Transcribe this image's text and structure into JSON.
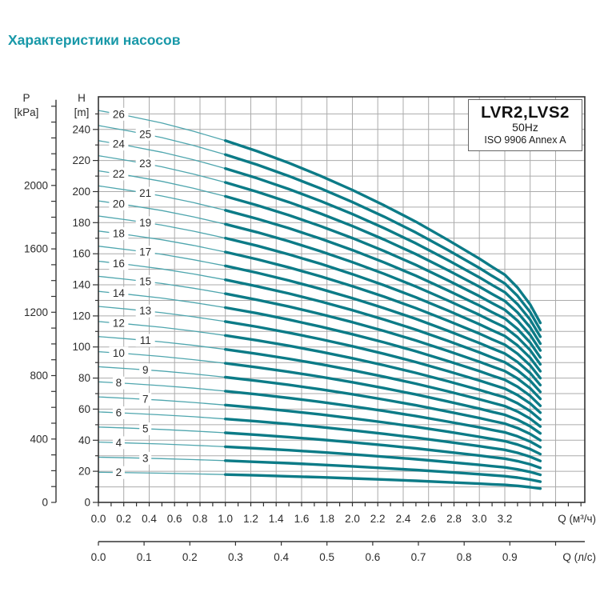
{
  "page": {
    "title": "Характеристики насосов"
  },
  "legend": {
    "model": "LVR2,LVS2",
    "frequency": "50Hz",
    "standard": "ISO 9906 Annex A"
  },
  "colors": {
    "title": "#1898a8",
    "curve_thin": "#4fa6ae",
    "curve_thick": "#0c7b87",
    "grid": "#ababab",
    "axis": "#333333",
    "text": "#2b2b2b"
  },
  "chart_data": {
    "type": "line",
    "title": "LVR2,LVS2 50Hz ISO 9906 Annex A",
    "description": "Head (H) vs flow (Q) curves for multistage pump, one curve per stage count",
    "x_axis_m3h": {
      "unit_label": "Q (м³/ч)",
      "labels": [
        "0.0",
        "0.2",
        "0.4",
        "0.6",
        "0.8",
        "1.0",
        "1.2",
        "1.4",
        "1.6",
        "1.8",
        "2.0",
        "2.2",
        "2.4",
        "2.6",
        "2.8",
        "3.0",
        "3.2"
      ],
      "label_step": 0.2,
      "minor_tick_step": 0.1,
      "minor_tick_max": 3.8,
      "axis_max": 3.83,
      "grid_step": 0.2,
      "grid_max": 3.6
    },
    "x_axis_ls": {
      "unit_label": "Q (л/с)",
      "labels": [
        "0.0",
        "0.1",
        "0.2",
        "0.3",
        "0.4",
        "0.5",
        "0.6",
        "0.7",
        "0.8",
        "0.9"
      ],
      "tick_step": 0.1,
      "tick_max": 1.0,
      "m3h_per_ls": 3.6
    },
    "y_axis_head": {
      "name": "H",
      "unit": "[m]",
      "labels": [
        "0",
        "20",
        "40",
        "60",
        "80",
        "100",
        "120",
        "140",
        "160",
        "180",
        "200",
        "220",
        "240"
      ],
      "label_step": 20,
      "minor_tick_step": 10,
      "minor_tick_max": 250,
      "frame_max": 261,
      "grid_step": 10,
      "grid_max": 250
    },
    "y_axis_pressure": {
      "name": "P",
      "unit": "[kPa]",
      "labels": [
        "0",
        "400",
        "800",
        "1200",
        "1600",
        "2000"
      ],
      "label_step": 400,
      "minor_tick_step": 100,
      "minor_tick_max": 2500,
      "kpa_to_m": 0.10197
    },
    "curves": {
      "stages": [
        2,
        3,
        4,
        5,
        6,
        7,
        8,
        9,
        10,
        11,
        12,
        13,
        14,
        15,
        16,
        17,
        18,
        19,
        20,
        21,
        22,
        23,
        24,
        25,
        26
      ],
      "head_per_stage_m": 9.7,
      "q_profile": [
        0,
        0.25,
        0.5,
        0.75,
        1.0,
        1.25,
        1.5,
        1.75,
        2.0,
        2.25,
        2.5,
        2.75,
        3.0,
        3.1,
        3.2,
        3.3,
        3.4,
        3.48
      ],
      "f_profile": [
        1.0,
        0.985,
        0.968,
        0.947,
        0.923,
        0.896,
        0.866,
        0.833,
        0.797,
        0.758,
        0.716,
        0.67,
        0.622,
        0.601,
        0.581,
        0.548,
        0.505,
        0.458
      ],
      "thick_from_q": 1.0,
      "q_end": 3.48,
      "label_q_even": 0.16,
      "label_q_odd": 0.37
    }
  }
}
